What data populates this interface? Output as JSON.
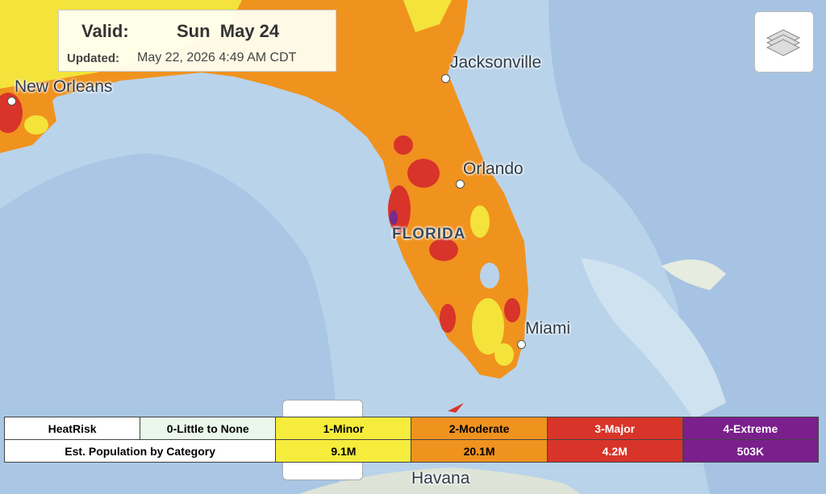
{
  "info": {
    "valid_label": "Valid:",
    "valid_date": "Sun  May 24",
    "updated_label": "Updated:",
    "updated_time": "May 22, 2026 4:49 AM CDT"
  },
  "places": [
    "New Orleans",
    "Jacksonville",
    "Orlando",
    "FLORIDA",
    "Miami",
    "Havana"
  ],
  "legend": {
    "row_header": "HeatRisk",
    "categories": [
      "0-Little to None",
      "1-Minor",
      "2-Moderate",
      "3-Major",
      "4-Extreme"
    ],
    "population_header": "Est. Population by Category",
    "population": [
      "9.1M",
      "20.1M",
      "4.2M",
      "503K"
    ]
  }
}
